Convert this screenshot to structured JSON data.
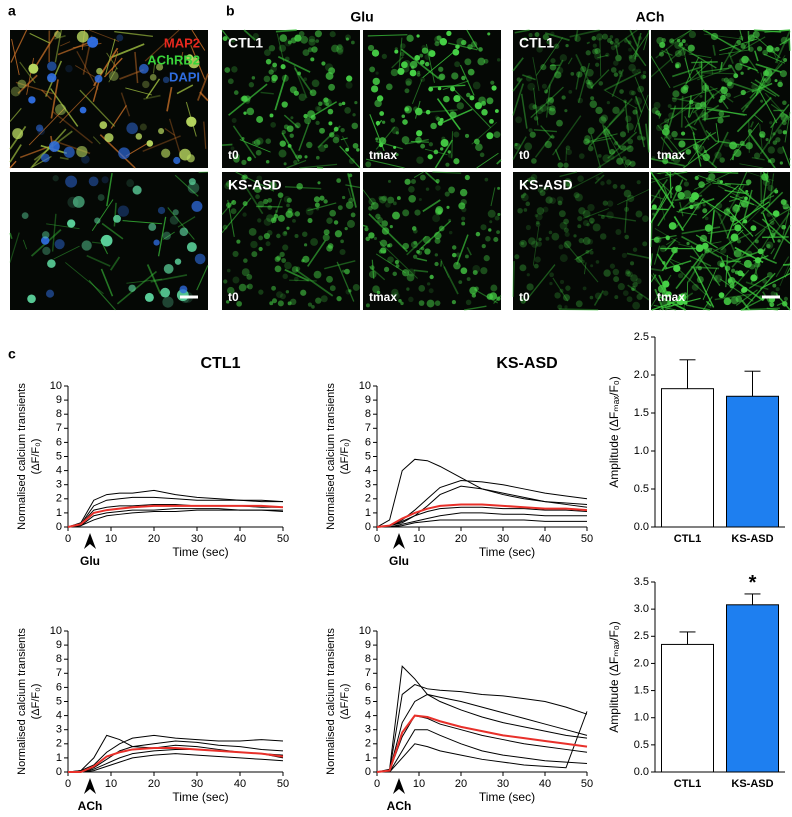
{
  "figure": {
    "panel_labels": [
      "a",
      "b",
      "c"
    ],
    "panel_a": {
      "stains": [
        "MAP2",
        "AChRB2",
        "DAPI"
      ],
      "stain_colors": [
        "#e8281e",
        "#3ad43a",
        "#2f6de0"
      ]
    },
    "panel_b": {
      "groups": [
        "Glu",
        "ACh"
      ],
      "rows": [
        "CTL1",
        "KS-ASD"
      ],
      "timepoints": [
        "t0",
        "tmax"
      ]
    }
  },
  "chart_data": [
    {
      "type": "line",
      "title": "CTL1",
      "ylabel": [
        "Normalised calcium transients",
        "(ΔF/F₀)"
      ],
      "xlabel": "Time (sec)",
      "stimulus": "Glu",
      "x": [
        0,
        3,
        6,
        9,
        12,
        15,
        20,
        25,
        30,
        35,
        40,
        45,
        50
      ],
      "xlim": [
        0,
        50
      ],
      "xticks": [
        0,
        10,
        20,
        30,
        40,
        50
      ],
      "ylim": [
        0,
        10
      ],
      "yticks": [
        0,
        1,
        2,
        3,
        4,
        5,
        6,
        7,
        8,
        9,
        10
      ],
      "series": [
        {
          "color": "#000000",
          "values": [
            0,
            0.3,
            1.9,
            2.3,
            2.4,
            2.4,
            2.6,
            2.3,
            2.1,
            2.0,
            1.9,
            1.9,
            1.8
          ]
        },
        {
          "color": "#000000",
          "values": [
            0,
            0.2,
            1.5,
            1.9,
            2.0,
            2.1,
            2.1,
            2.0,
            1.9,
            1.9,
            1.9,
            1.8,
            1.8
          ]
        },
        {
          "color": "#000000",
          "values": [
            0,
            0.2,
            1.2,
            1.4,
            1.5,
            1.5,
            1.6,
            1.6,
            1.5,
            1.5,
            1.5,
            1.4,
            1.4
          ]
        },
        {
          "color": "#000000",
          "values": [
            0,
            0.1,
            0.8,
            1.0,
            1.1,
            1.2,
            1.2,
            1.3,
            1.3,
            1.3,
            1.2,
            1.2,
            1.2
          ]
        },
        {
          "color": "#000000",
          "values": [
            0,
            0.1,
            0.5,
            0.8,
            0.9,
            1.0,
            1.1,
            1.1,
            1.2,
            1.2,
            1.2,
            1.2,
            1.1
          ]
        },
        {
          "color": "#e8302a",
          "values": [
            0,
            0.2,
            1.0,
            1.2,
            1.3,
            1.4,
            1.5,
            1.5,
            1.5,
            1.5,
            1.5,
            1.5,
            1.4
          ]
        }
      ]
    },
    {
      "type": "line",
      "title": "KS-ASD",
      "ylabel": [
        "Normalised calcium transients",
        "(ΔF/F₀)"
      ],
      "xlabel": "Time (sec)",
      "stimulus": "Glu",
      "x": [
        0,
        3,
        6,
        9,
        12,
        15,
        20,
        25,
        30,
        35,
        40,
        45,
        50
      ],
      "xlim": [
        0,
        50
      ],
      "xticks": [
        0,
        10,
        20,
        30,
        40,
        50
      ],
      "ylim": [
        0,
        10
      ],
      "yticks": [
        0,
        1,
        2,
        3,
        4,
        5,
        6,
        7,
        8,
        9,
        10
      ],
      "series": [
        {
          "color": "#000000",
          "values": [
            0,
            0.5,
            4.0,
            4.8,
            4.7,
            4.3,
            3.5,
            2.7,
            2.3,
            2.0,
            1.8,
            1.7,
            1.6
          ]
        },
        {
          "color": "#000000",
          "values": [
            0,
            0.1,
            0.5,
            1.2,
            2.0,
            2.8,
            3.3,
            3.2,
            3.0,
            2.7,
            2.4,
            2.2,
            2.0
          ]
        },
        {
          "color": "#000000",
          "values": [
            0,
            0.1,
            0.3,
            0.8,
            1.5,
            2.3,
            2.9,
            2.7,
            2.4,
            2.1,
            1.8,
            1.6,
            1.4
          ]
        },
        {
          "color": "#000000",
          "values": [
            0,
            0.1,
            0.4,
            0.8,
            1.1,
            1.3,
            1.4,
            1.4,
            1.3,
            1.3,
            1.2,
            1.2,
            1.1
          ]
        },
        {
          "color": "#000000",
          "values": [
            0,
            0.0,
            0.2,
            0.4,
            0.6,
            0.8,
            1.0,
            1.0,
            0.9,
            0.9,
            0.8,
            0.8,
            0.8
          ]
        },
        {
          "color": "#000000",
          "values": [
            0,
            0.0,
            0.1,
            0.3,
            0.4,
            0.5,
            0.5,
            0.5,
            0.5,
            0.5,
            0.4,
            0.4,
            0.4
          ]
        },
        {
          "color": "#e8302a",
          "values": [
            0,
            0.1,
            0.6,
            1.0,
            1.3,
            1.5,
            1.6,
            1.6,
            1.5,
            1.4,
            1.3,
            1.3,
            1.2
          ]
        }
      ]
    },
    {
      "type": "line",
      "ylabel": [
        "Normalised calcium transients",
        "(ΔF/F₀)"
      ],
      "xlabel": "Time (sec)",
      "stimulus": "ACh",
      "x": [
        0,
        3,
        6,
        9,
        12,
        15,
        20,
        25,
        30,
        35,
        40,
        45,
        50
      ],
      "xlim": [
        0,
        50
      ],
      "xticks": [
        0,
        10,
        20,
        30,
        40,
        50
      ],
      "ylim": [
        0,
        10
      ],
      "yticks": [
        0,
        1,
        2,
        3,
        4,
        5,
        6,
        7,
        8,
        9,
        10
      ],
      "series": [
        {
          "color": "#000000",
          "values": [
            0,
            0.1,
            1.0,
            2.6,
            2.3,
            1.8,
            1.7,
            1.9,
            1.8,
            1.6,
            1.4,
            1.3,
            1.2
          ]
        },
        {
          "color": "#000000",
          "values": [
            0,
            0.1,
            0.5,
            1.4,
            2.0,
            2.4,
            2.6,
            2.4,
            2.3,
            2.2,
            2.2,
            2.3,
            2.2
          ]
        },
        {
          "color": "#000000",
          "values": [
            0,
            0.0,
            0.3,
            0.9,
            1.5,
            1.8,
            2.0,
            2.2,
            2.1,
            1.9,
            1.8,
            1.6,
            1.5
          ]
        },
        {
          "color": "#000000",
          "values": [
            0,
            0.0,
            0.2,
            0.6,
            1.0,
            1.3,
            1.5,
            1.6,
            1.6,
            1.5,
            1.4,
            1.3,
            1.0
          ]
        },
        {
          "color": "#000000",
          "values": [
            0,
            0.0,
            0.1,
            0.4,
            0.7,
            1.0,
            1.2,
            1.3,
            1.2,
            1.1,
            1.0,
            0.9,
            0.8
          ]
        },
        {
          "color": "#e8302a",
          "values": [
            0,
            0.0,
            0.4,
            1.1,
            1.4,
            1.6,
            1.7,
            1.7,
            1.6,
            1.5,
            1.4,
            1.3,
            1.1
          ]
        }
      ]
    },
    {
      "type": "line",
      "ylabel": [
        "Normalised calcium transients",
        "(ΔF/F₀)"
      ],
      "xlabel": "Time (sec)",
      "stimulus": "ACh",
      "x": [
        0,
        3,
        6,
        9,
        12,
        15,
        20,
        25,
        30,
        35,
        40,
        45,
        50
      ],
      "xlim": [
        0,
        50
      ],
      "xticks": [
        0,
        10,
        20,
        30,
        40,
        50
      ],
      "ylim": [
        0,
        10
      ],
      "yticks": [
        0,
        1,
        2,
        3,
        4,
        5,
        6,
        7,
        8,
        9,
        10
      ],
      "series": [
        {
          "color": "#000000",
          "values": [
            0,
            0.2,
            7.5,
            6.6,
            5.5,
            5.0,
            4.4,
            3.9,
            3.5,
            3.2,
            2.9,
            2.6,
            2.4
          ]
        },
        {
          "color": "#000000",
          "values": [
            0,
            0.1,
            5.5,
            6.2,
            5.9,
            5.8,
            5.7,
            5.5,
            5.4,
            5.2,
            5.0,
            4.6,
            4.1
          ]
        },
        {
          "color": "#000000",
          "values": [
            0,
            0.1,
            3.5,
            5.0,
            5.5,
            5.3,
            5.0,
            4.6,
            4.2,
            3.8,
            3.4,
            3.0,
            2.6
          ]
        },
        {
          "color": "#000000",
          "values": [
            0,
            0.1,
            2.5,
            4.0,
            3.8,
            3.4,
            3.0,
            2.6,
            2.3,
            2.0,
            1.8,
            1.6,
            1.4
          ]
        },
        {
          "color": "#000000",
          "values": [
            0,
            0.0,
            1.5,
            3.0,
            3.0,
            2.6,
            2.0,
            1.5,
            1.2,
            1.0,
            0.8,
            0.7,
            0.6
          ]
        },
        {
          "color": "#000000",
          "values": [
            0,
            0.0,
            1.0,
            2.0,
            1.8,
            1.5,
            1.2,
            0.9,
            0.7,
            0.5,
            0.4,
            0.3,
            4.3
          ]
        },
        {
          "color": "#e8302a",
          "values": [
            0,
            0.1,
            2.8,
            4.0,
            3.9,
            3.6,
            3.2,
            2.9,
            2.6,
            2.4,
            2.2,
            2.0,
            1.8
          ]
        }
      ]
    },
    {
      "type": "bar",
      "ylabel": "Amplitude (ΔFₘₐₓ/F₀)",
      "categories": [
        "CTL1",
        "KS-ASD"
      ],
      "values": [
        1.82,
        1.72
      ],
      "errors": [
        0.38,
        0.33
      ],
      "colors": [
        "#ffffff",
        "#1e7ff0"
      ],
      "ylim": [
        0,
        2.5
      ],
      "yticks": [
        {
          "value": 0,
          "label": "0.0"
        },
        0.5,
        {
          "value": 1,
          "label": "1.0"
        },
        1.5,
        {
          "value": 2,
          "label": "2.0"
        },
        2.5
      ]
    },
    {
      "type": "bar",
      "ylabel": "Amplitude (ΔFₘₐₓ/F₀)",
      "categories": [
        "CTL1",
        "KS-ASD"
      ],
      "values": [
        2.35,
        3.08
      ],
      "errors": [
        0.23,
        0.2
      ],
      "colors": [
        "#ffffff",
        "#1e7ff0"
      ],
      "annotation": "*",
      "ylim": [
        0,
        3.5
      ],
      "yticks": [
        {
          "value": 0,
          "label": "0.0"
        },
        0.5,
        {
          "value": 1,
          "label": "1.0"
        },
        1.5,
        {
          "value": 2,
          "label": "2.0"
        },
        2.5,
        {
          "value": 3,
          "label": "3.0"
        },
        3.5
      ]
    }
  ]
}
